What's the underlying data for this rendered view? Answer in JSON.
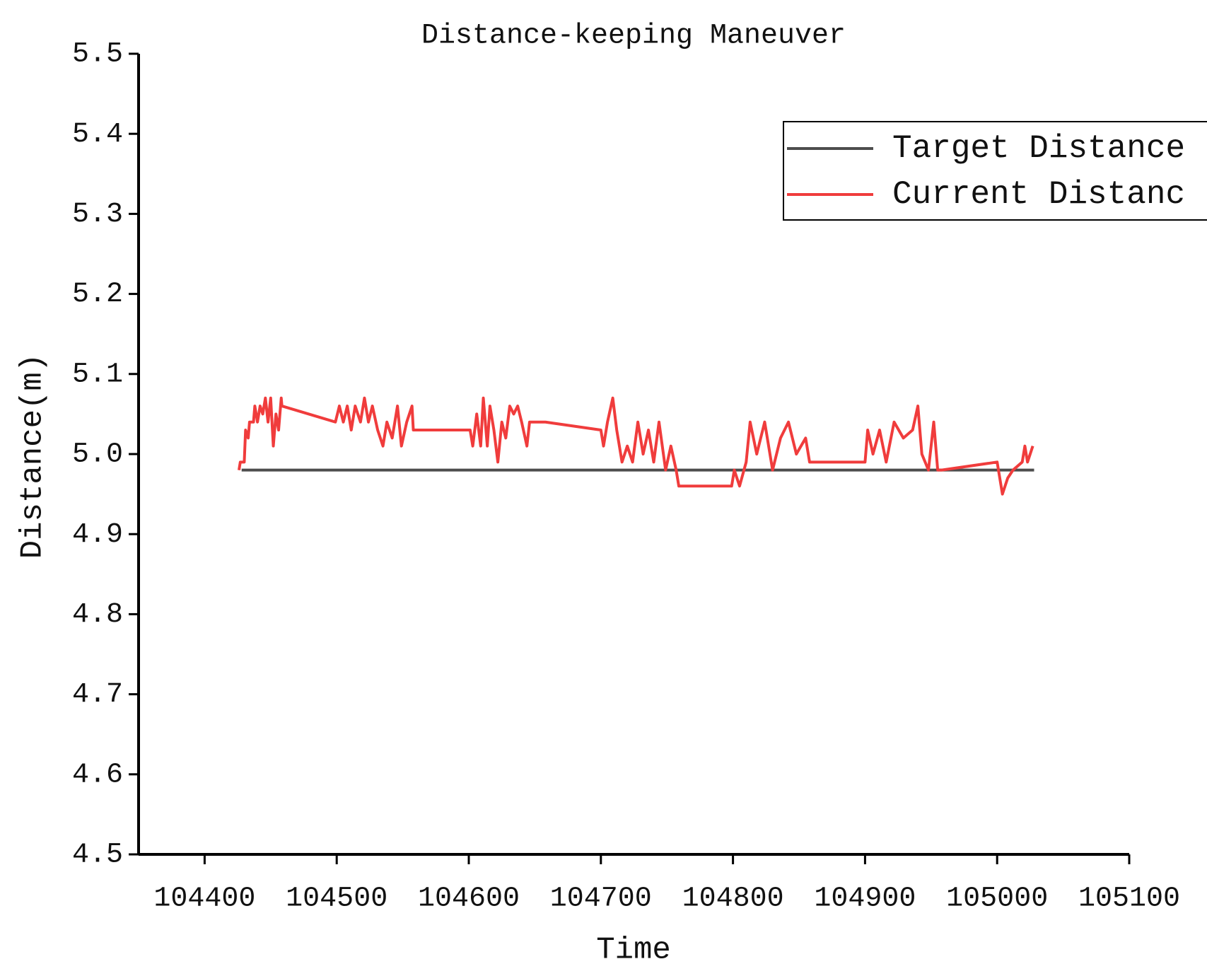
{
  "chart_data": {
    "type": "line",
    "title": "Distance-keeping Maneuver",
    "x_label": "Time",
    "y_label": "Distance(m)",
    "xlim": [
      104350,
      105100
    ],
    "xticks": [
      104400,
      104500,
      104600,
      104700,
      104800,
      104900,
      105000,
      105100
    ],
    "ylim": [
      4.5,
      5.5
    ],
    "yticks": [
      4.5,
      4.6,
      4.7,
      4.8,
      4.9,
      {
        "value": 5,
        "label": "5.0"
      },
      5.1,
      5.2,
      5.3,
      5.4,
      5.5
    ],
    "grid": false,
    "legend": "upper right",
    "series": [
      {
        "name": "Target Distance",
        "color": "#4d4d4d",
        "x": [
          104428,
          105028
        ],
        "values": [
          4.98,
          4.98
        ]
      },
      {
        "name": "Current Distanc",
        "color": "#f03c3c",
        "x": [
          104426,
          104427,
          104430,
          104431,
          104433,
          104434,
          104437,
          104438,
          104440,
          104442,
          104444,
          104446,
          104448,
          104450,
          104452,
          104454,
          104456,
          104458,
          104458.5,
          104499,
          104502,
          104505,
          104508,
          104511,
          104514,
          104518,
          104521,
          104524,
          104527,
          104531,
          104535,
          104538,
          104542,
          104546,
          104549,
          104553,
          104557,
          104558,
          104601,
          104603,
          104606,
          104609,
          104611,
          104614,
          104616,
          104619,
          104622,
          104625,
          104628,
          104631,
          104634,
          104637,
          104640,
          104644,
          104646,
          104658,
          104700,
          104702,
          104705,
          104709,
          104712,
          104716,
          104720,
          104724,
          104728,
          104732,
          104736,
          104740,
          104744,
          104749,
          104753,
          104757,
          104759,
          104799,
          104801,
          104805,
          104810,
          104813,
          104818,
          104824,
          104830,
          104836,
          104842,
          104848,
          104855,
          104858,
          104900,
          104902,
          104906,
          104911,
          104916,
          104922,
          104929,
          104936,
          104940,
          104943,
          104948,
          104952,
          104955,
          104958,
          105000,
          105004,
          105008,
          105012,
          105019,
          105021,
          105023,
          105027
        ],
        "values": [
          4.98,
          4.99,
          4.99,
          5.03,
          5.02,
          5.04,
          5.04,
          5.06,
          5.04,
          5.06,
          5.05,
          5.07,
          5.04,
          5.07,
          5.01,
          5.05,
          5.03,
          5.07,
          5.06,
          5.04,
          5.06,
          5.04,
          5.06,
          5.03,
          5.06,
          5.04,
          5.07,
          5.04,
          5.06,
          5.03,
          5.01,
          5.04,
          5.02,
          5.06,
          5.01,
          5.04,
          5.06,
          5.03,
          5.03,
          5.01,
          5.05,
          5.01,
          5.07,
          5.01,
          5.06,
          5.03,
          4.99,
          5.04,
          5.02,
          5.06,
          5.05,
          5.06,
          5.04,
          5.01,
          5.04,
          5.04,
          5.03,
          5.01,
          5.04,
          5.07,
          5.03,
          4.99,
          5.01,
          4.99,
          5.04,
          5.0,
          5.03,
          4.99,
          5.04,
          4.98,
          5.01,
          4.98,
          4.96,
          4.96,
          4.98,
          4.96,
          4.99,
          5.04,
          5.0,
          5.04,
          4.98,
          5.02,
          5.04,
          5.0,
          5.02,
          4.99,
          4.99,
          5.03,
          5.0,
          5.03,
          4.99,
          5.04,
          5.02,
          5.03,
          5.06,
          5.0,
          4.98,
          5.04,
          4.98,
          4.98,
          4.99,
          4.95,
          4.97,
          4.98,
          4.99,
          5.01,
          4.99,
          5.01
        ]
      }
    ]
  }
}
